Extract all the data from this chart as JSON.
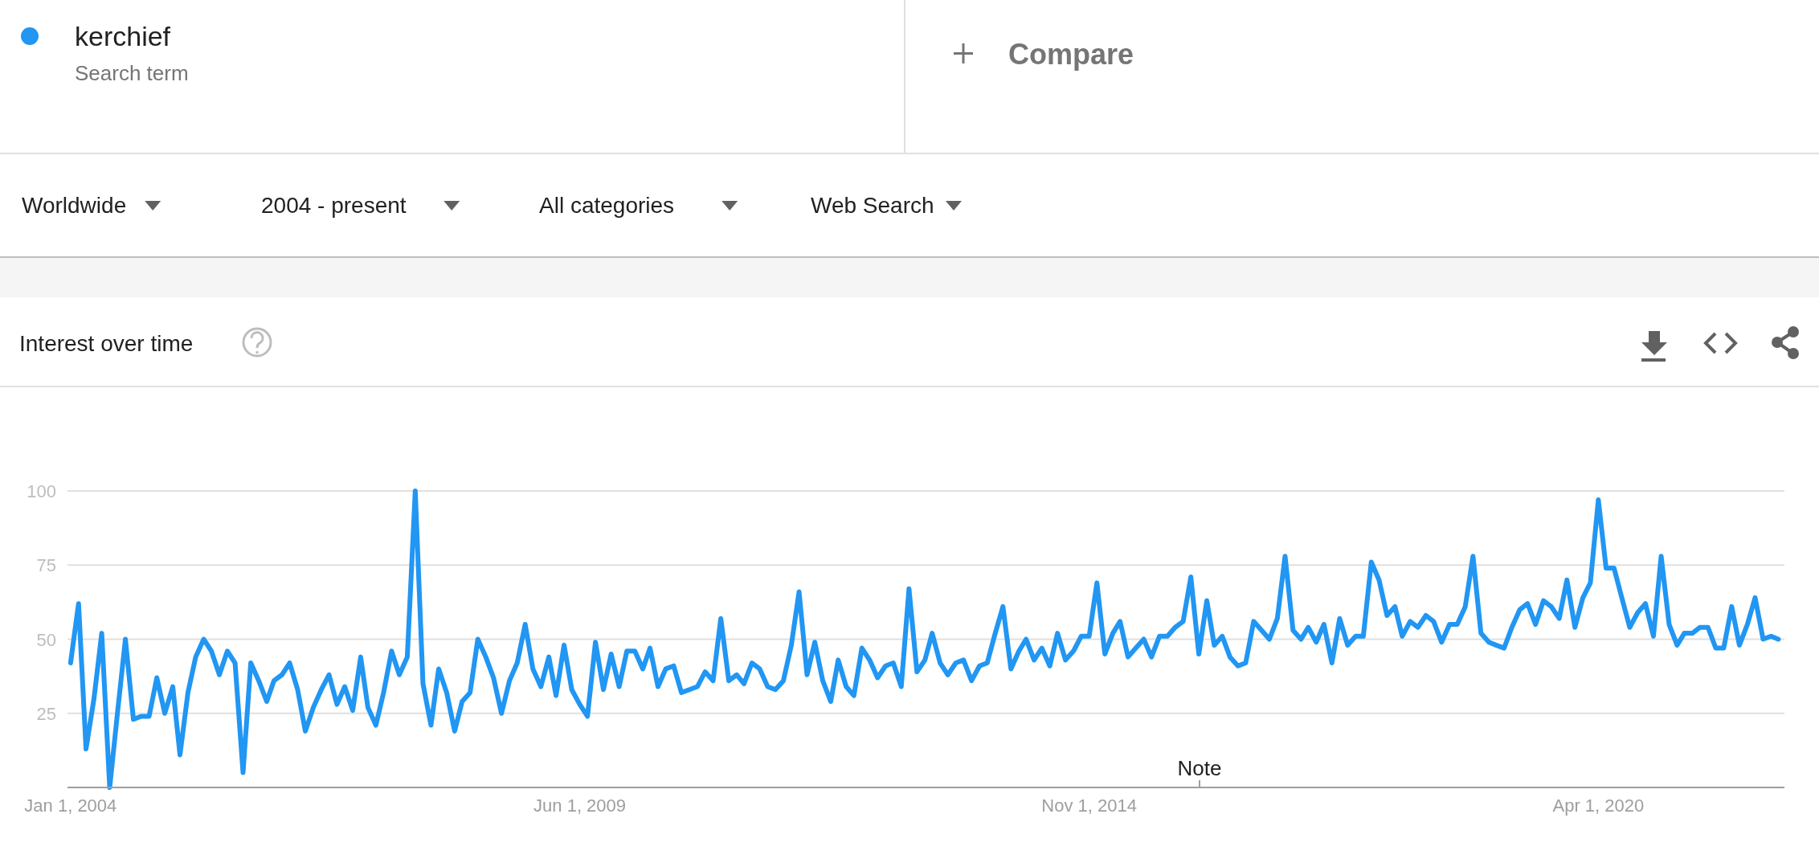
{
  "chart_data": {
    "type": "line",
    "title": "Interest over time",
    "legend": "top left",
    "grid": "y",
    "marker": "none",
    "line_style": "solid",
    "annotations": [
      "Search term",
      "Compare",
      "Worldwide",
      "2004 - present",
      "All categories",
      "Web Search",
      "Note"
    ],
    "xlim": [
      "2003-12-20",
      "2022-03-25"
    ],
    "xticks": [
      {
        "value": "2004-01-01",
        "label": "Jan 1, 2004"
      },
      {
        "value": "2009-06-01",
        "label": "Jun 1, 2009"
      },
      {
        "value": "2014-11-01",
        "label": "Nov 1, 2014"
      },
      {
        "value": "2020-04-01",
        "label": "Apr 1, 2020"
      }
    ],
    "ylim": [
      0,
      100
    ],
    "yticks": [
      25,
      50,
      75,
      100
    ],
    "x": [
      "2004-01",
      "2004-02",
      "2004-03",
      "2004-04",
      "2004-05",
      "2004-06",
      "2004-07",
      "2004-08",
      "2004-09",
      "2004-10",
      "2004-11",
      "2004-12",
      "2005-01",
      "2005-02",
      "2005-03",
      "2005-04",
      "2005-05",
      "2005-06",
      "2005-07",
      "2005-08",
      "2005-09",
      "2005-10",
      "2005-11",
      "2005-12",
      "2006-01",
      "2006-02",
      "2006-03",
      "2006-04",
      "2006-05",
      "2006-06",
      "2006-07",
      "2006-08",
      "2006-09",
      "2006-10",
      "2006-11",
      "2006-12",
      "2007-01",
      "2007-02",
      "2007-03",
      "2007-04",
      "2007-05",
      "2007-06",
      "2007-07",
      "2007-08",
      "2007-09",
      "2007-10",
      "2007-11",
      "2007-12",
      "2008-01",
      "2008-02",
      "2008-03",
      "2008-04",
      "2008-05",
      "2008-06",
      "2008-07",
      "2008-08",
      "2008-09",
      "2008-10",
      "2008-11",
      "2008-12",
      "2009-01",
      "2009-02",
      "2009-03",
      "2009-04",
      "2009-05",
      "2009-06",
      "2009-07",
      "2009-08",
      "2009-09",
      "2009-10",
      "2009-11",
      "2009-12",
      "2010-01",
      "2010-02",
      "2010-03",
      "2010-04",
      "2010-05",
      "2010-06",
      "2010-07",
      "2010-08",
      "2010-09",
      "2010-10",
      "2010-11",
      "2010-12",
      "2011-01",
      "2011-02",
      "2011-03",
      "2011-04",
      "2011-05",
      "2011-06",
      "2011-07",
      "2011-08",
      "2011-09",
      "2011-10",
      "2011-11",
      "2011-12",
      "2012-01",
      "2012-02",
      "2012-03",
      "2012-04",
      "2012-05",
      "2012-06",
      "2012-07",
      "2012-08",
      "2012-09",
      "2012-10",
      "2012-11",
      "2012-12",
      "2013-01",
      "2013-02",
      "2013-03",
      "2013-04",
      "2013-05",
      "2013-06",
      "2013-07",
      "2013-08",
      "2013-09",
      "2013-10",
      "2013-11",
      "2013-12",
      "2014-01",
      "2014-02",
      "2014-03",
      "2014-04",
      "2014-05",
      "2014-06",
      "2014-07",
      "2014-08",
      "2014-09",
      "2014-10",
      "2014-11",
      "2014-12",
      "2015-01",
      "2015-02",
      "2015-03",
      "2015-04",
      "2015-05",
      "2015-06",
      "2015-07",
      "2015-08",
      "2015-09",
      "2015-10",
      "2015-11",
      "2015-12",
      "2016-01",
      "2016-02",
      "2016-03",
      "2016-04",
      "2016-05",
      "2016-06",
      "2016-07",
      "2016-08",
      "2016-09",
      "2016-10",
      "2016-11",
      "2016-12",
      "2017-01",
      "2017-02",
      "2017-03",
      "2017-04",
      "2017-05",
      "2017-06",
      "2017-07",
      "2017-08",
      "2017-09",
      "2017-10",
      "2017-11",
      "2017-12",
      "2018-01",
      "2018-02",
      "2018-03",
      "2018-04",
      "2018-05",
      "2018-06",
      "2018-07",
      "2018-08",
      "2018-09",
      "2018-10",
      "2018-11",
      "2018-12",
      "2019-01",
      "2019-02",
      "2019-03",
      "2019-04",
      "2019-05",
      "2019-06",
      "2019-07",
      "2019-08",
      "2019-09",
      "2019-10",
      "2019-11",
      "2019-12",
      "2020-01",
      "2020-02",
      "2020-03",
      "2020-04",
      "2020-05",
      "2020-06",
      "2020-07",
      "2020-08",
      "2020-09",
      "2020-10",
      "2020-11",
      "2020-12",
      "2021-01",
      "2021-02",
      "2021-03",
      "2021-04",
      "2021-05",
      "2021-06",
      "2021-07",
      "2021-08",
      "2021-09",
      "2021-10",
      "2021-11",
      "2021-12",
      "2022-01",
      "2022-02",
      "2022-03"
    ],
    "series": [
      {
        "name": "kerchief",
        "color": "#2196f3",
        "values": [
          42,
          62,
          13,
          30,
          52,
          0,
          25,
          50,
          23,
          24,
          24,
          37,
          25,
          34,
          11,
          32,
          44,
          50,
          46,
          38,
          46,
          42,
          5,
          42,
          36,
          29,
          36,
          38,
          42,
          33,
          19,
          27,
          33,
          38,
          28,
          34,
          26,
          44,
          27,
          21,
          32,
          46,
          38,
          44,
          100,
          35,
          21,
          40,
          32,
          19,
          29,
          32,
          50,
          44,
          37,
          25,
          36,
          42,
          55,
          40,
          34,
          44,
          31,
          48,
          33,
          28,
          24,
          49,
          33,
          45,
          34,
          46,
          46,
          40,
          47,
          34,
          40,
          41,
          32,
          33,
          34,
          39,
          36,
          57,
          36,
          38,
          35,
          42,
          40,
          34,
          33,
          36,
          48,
          66,
          38,
          49,
          36,
          29,
          43,
          34,
          31,
          47,
          43,
          37,
          41,
          42,
          34,
          67,
          39,
          43,
          52,
          42,
          38,
          42,
          43,
          36,
          41,
          42,
          52,
          61,
          40,
          46,
          50,
          43,
          47,
          41,
          52,
          43,
          46,
          51,
          51,
          69,
          45,
          52,
          56,
          44,
          47,
          50,
          44,
          51,
          51,
          54,
          56,
          71,
          45,
          63,
          48,
          51,
          44,
          41,
          42,
          56,
          53,
          50,
          57,
          78,
          53,
          50,
          54,
          49,
          55,
          42,
          57,
          48,
          51,
          51,
          76,
          70,
          58,
          61,
          51,
          56,
          54,
          58,
          56,
          49,
          55,
          55,
          61,
          78,
          52,
          49,
          48,
          47,
          54,
          60,
          62,
          55,
          63,
          61,
          57,
          70,
          54,
          64,
          69,
          97,
          74,
          74,
          64,
          54,
          59,
          62,
          51,
          78,
          55,
          48,
          52,
          52,
          54,
          54,
          47,
          47,
          61,
          48,
          55,
          64,
          50,
          51,
          50
        ]
      }
    ]
  }
}
